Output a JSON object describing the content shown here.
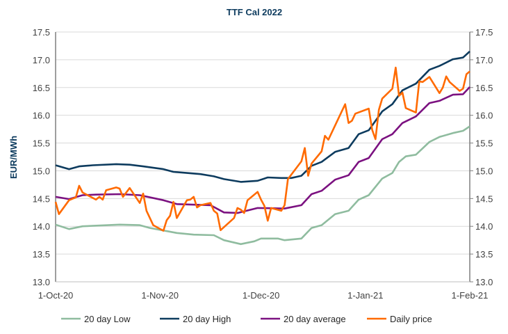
{
  "chart_data": {
    "type": "line",
    "title": "TTF Cal 2022",
    "ylabel": "EUR/MWh",
    "xlabel": "",
    "ylim": [
      13.0,
      17.5
    ],
    "y_ticks": [
      "13.0",
      "13.5",
      "14.0",
      "14.5",
      "15.0",
      "15.5",
      "16.0",
      "16.5",
      "17.0",
      "17.5"
    ],
    "secondary_y_axis": true,
    "xlim": [
      "2020-10-01",
      "2021-02-01"
    ],
    "x_ticks": [
      {
        "date": "2020-10-01",
        "label": "1-Oct-20"
      },
      {
        "date": "2020-11-01",
        "label": "1-Nov-20"
      },
      {
        "date": "2020-12-01",
        "label": "1-Dec-20"
      },
      {
        "date": "2021-01-01",
        "label": "1-Jan-21"
      },
      {
        "date": "2021-02-01",
        "label": "1-Feb-21"
      }
    ],
    "grid": "horizontal",
    "legend_position": "bottom",
    "series": [
      {
        "name": "20 day Low",
        "color": "#8fbc9f",
        "points": [
          [
            "2020-10-01",
            14.03
          ],
          [
            "2020-10-05",
            13.95
          ],
          [
            "2020-10-09",
            14.0
          ],
          [
            "2020-10-20",
            14.03
          ],
          [
            "2020-10-26",
            14.02
          ],
          [
            "2020-10-29",
            13.97
          ],
          [
            "2020-11-06",
            13.88
          ],
          [
            "2020-11-11",
            13.85
          ],
          [
            "2020-11-17",
            13.84
          ],
          [
            "2020-11-20",
            13.75
          ],
          [
            "2020-11-25",
            13.68
          ],
          [
            "2020-11-29",
            13.73
          ],
          [
            "2020-12-01",
            13.78
          ],
          [
            "2020-12-06",
            13.78
          ],
          [
            "2020-12-08",
            13.75
          ],
          [
            "2020-12-13",
            13.78
          ],
          [
            "2020-12-16",
            13.97
          ],
          [
            "2020-12-19",
            14.02
          ],
          [
            "2020-12-23",
            14.22
          ],
          [
            "2020-12-27",
            14.28
          ],
          [
            "2020-12-30",
            14.48
          ],
          [
            "2021-01-02",
            14.56
          ],
          [
            "2021-01-06",
            14.86
          ],
          [
            "2021-01-09",
            14.96
          ],
          [
            "2021-01-11",
            15.16
          ],
          [
            "2021-01-13",
            15.26
          ],
          [
            "2021-01-16",
            15.29
          ],
          [
            "2021-01-20",
            15.52
          ],
          [
            "2021-01-23",
            15.61
          ],
          [
            "2021-01-27",
            15.68
          ],
          [
            "2021-01-30",
            15.72
          ],
          [
            "2021-02-01",
            15.8
          ]
        ]
      },
      {
        "name": "20 day High",
        "color": "#0d3b5e",
        "points": [
          [
            "2020-10-01",
            15.1
          ],
          [
            "2020-10-05",
            15.03
          ],
          [
            "2020-10-08",
            15.08
          ],
          [
            "2020-10-12",
            15.1
          ],
          [
            "2020-10-19",
            15.12
          ],
          [
            "2020-10-23",
            15.11
          ],
          [
            "2020-10-27",
            15.08
          ],
          [
            "2020-11-02",
            15.03
          ],
          [
            "2020-11-05",
            14.98
          ],
          [
            "2020-11-09",
            14.96
          ],
          [
            "2020-11-13",
            14.94
          ],
          [
            "2020-11-17",
            14.9
          ],
          [
            "2020-11-20",
            14.85
          ],
          [
            "2020-11-25",
            14.8
          ],
          [
            "2020-11-30",
            14.82
          ],
          [
            "2020-12-03",
            14.88
          ],
          [
            "2020-12-07",
            14.87
          ],
          [
            "2020-12-10",
            14.87
          ],
          [
            "2020-12-13",
            14.91
          ],
          [
            "2020-12-16",
            15.09
          ],
          [
            "2020-12-19",
            15.16
          ],
          [
            "2020-12-23",
            15.34
          ],
          [
            "2020-12-27",
            15.41
          ],
          [
            "2020-12-30",
            15.66
          ],
          [
            "2021-01-02",
            15.73
          ],
          [
            "2021-01-06",
            16.07
          ],
          [
            "2021-01-09",
            16.2
          ],
          [
            "2021-01-12",
            16.45
          ],
          [
            "2021-01-16",
            16.57
          ],
          [
            "2021-01-20",
            16.82
          ],
          [
            "2021-01-23",
            16.89
          ],
          [
            "2021-01-27",
            17.01
          ],
          [
            "2021-01-30",
            17.04
          ],
          [
            "2021-02-01",
            17.15
          ]
        ]
      },
      {
        "name": "20 day average",
        "color": "#7b1180",
        "points": [
          [
            "2020-10-01",
            14.53
          ],
          [
            "2020-10-05",
            14.49
          ],
          [
            "2020-10-09",
            14.56
          ],
          [
            "2020-10-13",
            14.57
          ],
          [
            "2020-10-20",
            14.58
          ],
          [
            "2020-10-26",
            14.56
          ],
          [
            "2020-11-02",
            14.47
          ],
          [
            "2020-11-06",
            14.4
          ],
          [
            "2020-11-16",
            14.38
          ],
          [
            "2020-11-20",
            14.25
          ],
          [
            "2020-11-24",
            14.24
          ],
          [
            "2020-11-30",
            14.33
          ],
          [
            "2020-12-08",
            14.32
          ],
          [
            "2020-12-13",
            14.38
          ],
          [
            "2020-12-16",
            14.58
          ],
          [
            "2020-12-19",
            14.64
          ],
          [
            "2020-12-23",
            14.84
          ],
          [
            "2020-12-27",
            14.92
          ],
          [
            "2020-12-30",
            15.16
          ],
          [
            "2021-01-02",
            15.23
          ],
          [
            "2021-01-06",
            15.57
          ],
          [
            "2021-01-09",
            15.66
          ],
          [
            "2021-01-12",
            15.86
          ],
          [
            "2021-01-16",
            15.98
          ],
          [
            "2021-01-20",
            16.22
          ],
          [
            "2021-01-23",
            16.26
          ],
          [
            "2021-01-27",
            16.37
          ],
          [
            "2021-01-30",
            16.38
          ],
          [
            "2021-02-01",
            16.51
          ]
        ]
      },
      {
        "name": "Daily price",
        "color": "#ff6a00",
        "points": [
          [
            "2020-10-01",
            14.44
          ],
          [
            "2020-10-02",
            14.22
          ],
          [
            "2020-10-05",
            14.47
          ],
          [
            "2020-10-07",
            14.52
          ],
          [
            "2020-10-08",
            14.73
          ],
          [
            "2020-10-09",
            14.61
          ],
          [
            "2020-10-13",
            14.48
          ],
          [
            "2020-10-14",
            14.53
          ],
          [
            "2020-10-15",
            14.48
          ],
          [
            "2020-10-16",
            14.65
          ],
          [
            "2020-10-19",
            14.7
          ],
          [
            "2020-10-20",
            14.68
          ],
          [
            "2020-10-21",
            14.53
          ],
          [
            "2020-10-23",
            14.69
          ],
          [
            "2020-10-26",
            14.42
          ],
          [
            "2020-10-27",
            14.59
          ],
          [
            "2020-10-28",
            14.28
          ],
          [
            "2020-10-30",
            14.02
          ],
          [
            "2020-11-02",
            13.92
          ],
          [
            "2020-11-03",
            14.11
          ],
          [
            "2020-11-04",
            14.19
          ],
          [
            "2020-11-05",
            14.44
          ],
          [
            "2020-11-06",
            14.15
          ],
          [
            "2020-11-09",
            14.47
          ],
          [
            "2020-11-10",
            14.48
          ],
          [
            "2020-11-11",
            14.53
          ],
          [
            "2020-11-12",
            14.34
          ],
          [
            "2020-11-13",
            14.38
          ],
          [
            "2020-11-16",
            14.42
          ],
          [
            "2020-11-17",
            14.28
          ],
          [
            "2020-11-18",
            14.23
          ],
          [
            "2020-11-19",
            13.93
          ],
          [
            "2020-11-23",
            14.15
          ],
          [
            "2020-11-24",
            14.33
          ],
          [
            "2020-11-25",
            14.3
          ],
          [
            "2020-11-26",
            14.24
          ],
          [
            "2020-11-27",
            14.47
          ],
          [
            "2020-11-30",
            14.62
          ],
          [
            "2020-12-01",
            14.48
          ],
          [
            "2020-12-02",
            14.37
          ],
          [
            "2020-12-03",
            14.1
          ],
          [
            "2020-12-04",
            14.33
          ],
          [
            "2020-12-07",
            14.28
          ],
          [
            "2020-12-08",
            14.38
          ],
          [
            "2020-12-09",
            14.85
          ],
          [
            "2020-12-13",
            15.17
          ],
          [
            "2020-12-14",
            15.41
          ],
          [
            "2020-12-15",
            14.91
          ],
          [
            "2020-12-16",
            15.13
          ],
          [
            "2020-12-19",
            15.35
          ],
          [
            "2020-12-20",
            15.63
          ],
          [
            "2020-12-21",
            15.56
          ],
          [
            "2020-12-26",
            16.2
          ],
          [
            "2020-12-27",
            15.86
          ],
          [
            "2020-12-28",
            15.9
          ],
          [
            "2020-12-29",
            16.03
          ],
          [
            "2021-01-02",
            16.12
          ],
          [
            "2021-01-03",
            15.74
          ],
          [
            "2021-01-04",
            15.57
          ],
          [
            "2021-01-05",
            16.1
          ],
          [
            "2021-01-06",
            16.3
          ],
          [
            "2021-01-09",
            16.48
          ],
          [
            "2021-01-10",
            16.86
          ],
          [
            "2021-01-11",
            16.35
          ],
          [
            "2021-01-12",
            16.41
          ],
          [
            "2021-01-13",
            16.13
          ],
          [
            "2021-01-16",
            16.05
          ],
          [
            "2021-01-17",
            16.61
          ],
          [
            "2021-01-18",
            16.6
          ],
          [
            "2021-01-20",
            16.69
          ],
          [
            "2021-01-23",
            16.4
          ],
          [
            "2021-01-24",
            16.5
          ],
          [
            "2021-01-25",
            16.7
          ],
          [
            "2021-01-26",
            16.6
          ],
          [
            "2021-01-29",
            16.44
          ],
          [
            "2021-01-30",
            16.48
          ],
          [
            "2021-01-31",
            16.74
          ],
          [
            "2021-02-01",
            16.79
          ]
        ]
      }
    ]
  }
}
